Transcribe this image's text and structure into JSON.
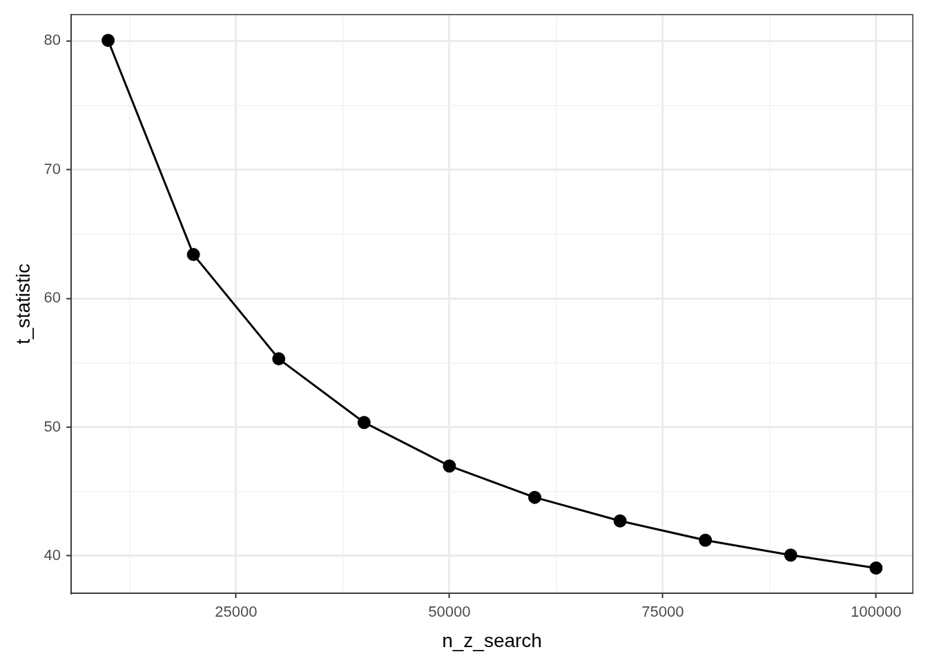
{
  "chart_data": {
    "type": "line",
    "xlabel": "n_z_search",
    "ylabel": "t_statistic",
    "x": [
      10000,
      20000,
      30000,
      40000,
      50000,
      60000,
      70000,
      80000,
      90000,
      100000
    ],
    "series": [
      {
        "color": "#000000",
        "values": [
          80.05,
          63.41,
          55.31,
          50.37,
          46.99,
          44.55,
          42.72,
          41.22,
          40.06,
          39.06
        ]
      }
    ],
    "xlim": [
      5670,
      104310
    ],
    "ylim": [
      37.1,
      82.05
    ],
    "xticks": [
      {
        "value": 12500,
        "label": null
      },
      25000,
      {
        "value": 37500,
        "label": null
      },
      50000,
      {
        "value": 62500,
        "label": null
      },
      75000,
      {
        "value": 87500,
        "label": null
      },
      100000
    ],
    "yticks": [
      40,
      {
        "value": 45,
        "label": null
      },
      50,
      {
        "value": 55,
        "label": null
      },
      60,
      {
        "value": 65,
        "label": null
      },
      70,
      {
        "value": 75,
        "label": null
      },
      80
    ],
    "grid": true,
    "legend": false,
    "marker": "circle",
    "line_style": "solid"
  }
}
